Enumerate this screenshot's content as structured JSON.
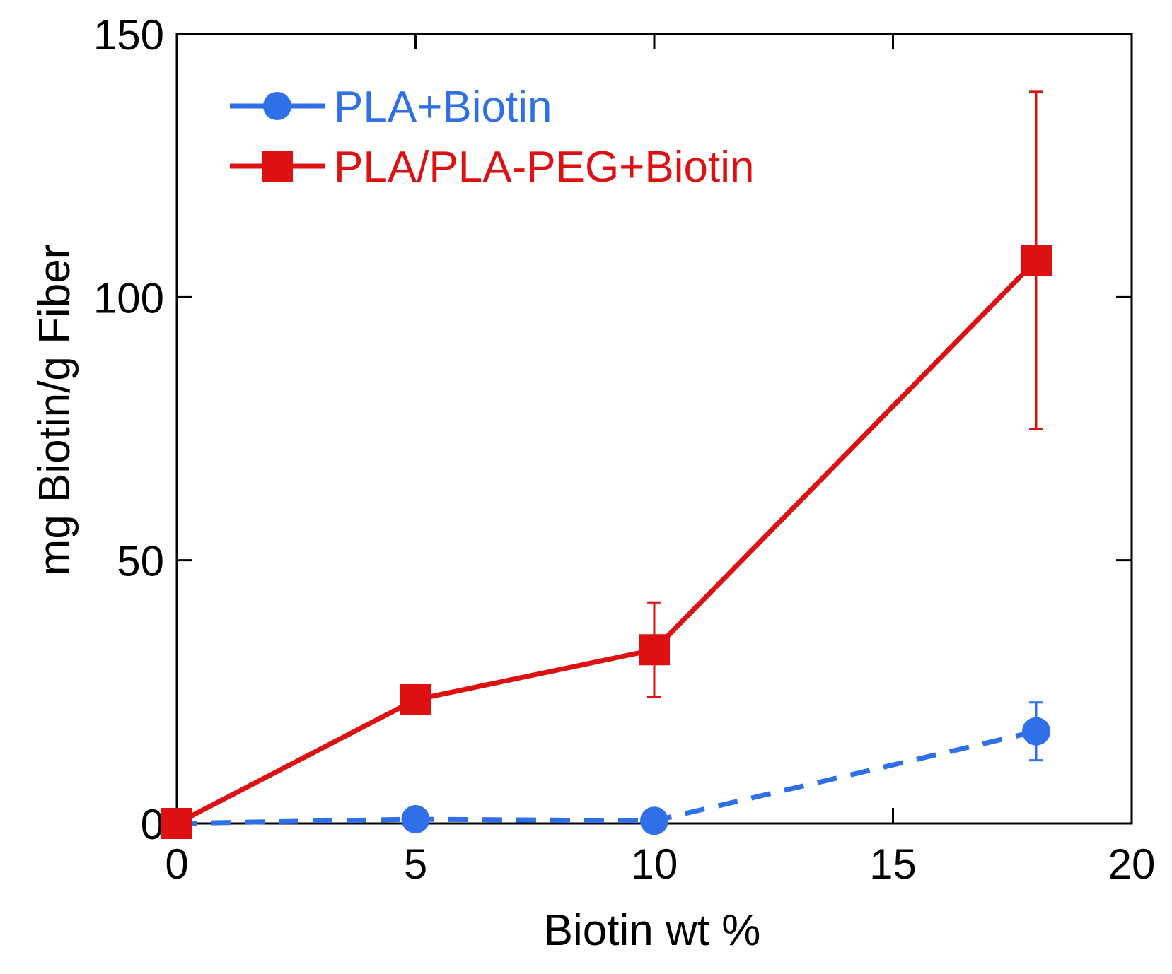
{
  "chart_data": {
    "type": "line",
    "title": "",
    "xlabel": "Biotin wt %",
    "ylabel": "mg Biotin/g Fiber",
    "xlim": [
      0,
      20
    ],
    "ylim": [
      0,
      150
    ],
    "xticks": [
      0,
      5,
      10,
      15,
      20
    ],
    "yticks": [
      0,
      50,
      100,
      150
    ],
    "x_tick_labels": [
      "0",
      "5",
      "10",
      "15",
      "20"
    ],
    "y_tick_labels": [
      "0",
      "50",
      "100",
      "150"
    ],
    "grid": false,
    "legend_position": "top-left",
    "series": [
      {
        "name": "PLA+Biotin",
        "color": "#2f6fe8",
        "marker": "circle",
        "line_style": "dashed",
        "x": [
          0,
          5,
          10,
          18
        ],
        "y": [
          0,
          0.8,
          0.5,
          17.5
        ],
        "error": [
          null,
          null,
          null,
          5.5
        ]
      },
      {
        "name": "PLA/PLA-PEG+Biotin",
        "color": "#dd1111",
        "marker": "square",
        "line_style": "solid",
        "x": [
          0,
          5,
          10,
          18
        ],
        "y": [
          0,
          23.5,
          33,
          107
        ],
        "error": [
          null,
          null,
          9,
          32
        ]
      }
    ]
  }
}
